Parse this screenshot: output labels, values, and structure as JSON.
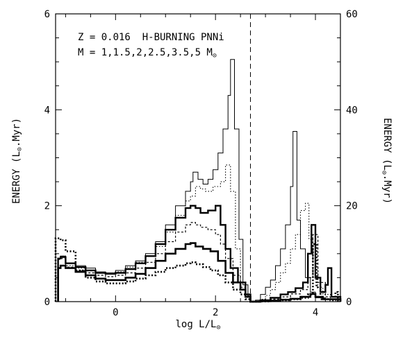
{
  "chart_data": {
    "type": "line",
    "step": true,
    "annotations": {
      "line1": "Z = 0.016  H-BURNING PNNi",
      "line2": "M = 1,1.5,2,2.5,3.5,5 M",
      "line2_sub": "⊙"
    },
    "xlabel": "log L/L",
    "xlabel_sub": "⊙",
    "ylabel_left": "ENERGY (L",
    "ylabel_left_sub": "⊙",
    "ylabel_left_end": ".Myr)",
    "ylabel_right": "ENERGY (L",
    "ylabel_right_sub": "⊙",
    "ylabel_right_end": ".Myr)",
    "xlim": [
      -1.2,
      4.5
    ],
    "ylim_left": [
      0,
      6
    ],
    "ylim_right": [
      0,
      60
    ],
    "x_ticks": [
      0,
      2,
      4
    ],
    "y_ticks_left": [
      0,
      2,
      4,
      6
    ],
    "y_ticks_right": [
      0,
      20,
      40,
      60
    ],
    "vertical_dashed_line_x": 2.7,
    "left_axis_range_x": [
      -1.2,
      2.7
    ],
    "right_axis_range_x": [
      2.7,
      4.5
    ],
    "series": [
      {
        "style": "thin-solid",
        "points": [
          [
            -1.15,
            0
          ],
          [
            -1.15,
            0.9
          ],
          [
            -1.1,
            0.95
          ],
          [
            -1.0,
            0.8
          ],
          [
            -0.8,
            0.75
          ],
          [
            -0.6,
            0.7
          ],
          [
            -0.4,
            0.62
          ],
          [
            -0.2,
            0.6
          ],
          [
            0.0,
            0.65
          ],
          [
            0.2,
            0.75
          ],
          [
            0.4,
            0.85
          ],
          [
            0.6,
            1.0
          ],
          [
            0.8,
            1.25
          ],
          [
            1.0,
            1.6
          ],
          [
            1.2,
            2.0
          ],
          [
            1.4,
            2.3
          ],
          [
            1.5,
            2.5
          ],
          [
            1.55,
            2.7
          ],
          [
            1.65,
            2.55
          ],
          [
            1.75,
            2.45
          ],
          [
            1.85,
            2.55
          ],
          [
            1.95,
            2.75
          ],
          [
            2.05,
            3.1
          ],
          [
            2.15,
            3.6
          ],
          [
            2.25,
            4.3
          ],
          [
            2.3,
            5.05
          ],
          [
            2.38,
            3.6
          ],
          [
            2.47,
            1.3
          ],
          [
            2.55,
            0.35
          ],
          [
            2.65,
            0.1
          ],
          [
            2.7,
            0
          ],
          [
            2.8,
            0.3
          ],
          [
            2.9,
            1.5
          ],
          [
            3.0,
            3.0
          ],
          [
            3.1,
            4.5
          ],
          [
            3.2,
            7.5
          ],
          [
            3.3,
            11.0
          ],
          [
            3.4,
            16.0
          ],
          [
            3.5,
            24.0
          ],
          [
            3.55,
            35.5
          ],
          [
            3.63,
            17.0
          ],
          [
            3.7,
            11.0
          ],
          [
            3.8,
            5.0
          ],
          [
            3.9,
            2.0
          ],
          [
            4.0,
            0.8
          ],
          [
            4.2,
            0
          ],
          [
            4.5,
            0
          ]
        ]
      },
      {
        "style": "thin-dotted",
        "points": [
          [
            -1.15,
            0
          ],
          [
            -1.15,
            0.9
          ],
          [
            -1.1,
            0.95
          ],
          [
            -1.0,
            0.75
          ],
          [
            -0.8,
            0.7
          ],
          [
            -0.6,
            0.65
          ],
          [
            -0.4,
            0.6
          ],
          [
            -0.2,
            0.58
          ],
          [
            0.0,
            0.62
          ],
          [
            0.2,
            0.72
          ],
          [
            0.4,
            0.82
          ],
          [
            0.6,
            0.95
          ],
          [
            0.8,
            1.15
          ],
          [
            1.0,
            1.45
          ],
          [
            1.2,
            1.8
          ],
          [
            1.4,
            2.1
          ],
          [
            1.5,
            2.2
          ],
          [
            1.6,
            2.4
          ],
          [
            1.7,
            2.35
          ],
          [
            1.8,
            2.3
          ],
          [
            1.95,
            2.4
          ],
          [
            2.1,
            2.5
          ],
          [
            2.2,
            2.85
          ],
          [
            2.3,
            2.3
          ],
          [
            2.4,
            1.1
          ],
          [
            2.5,
            0.4
          ],
          [
            2.6,
            0.15
          ],
          [
            2.7,
            0
          ],
          [
            2.9,
            0.5
          ],
          [
            3.0,
            1.3
          ],
          [
            3.1,
            2.5
          ],
          [
            3.2,
            4.0
          ],
          [
            3.3,
            6.0
          ],
          [
            3.4,
            8.0
          ],
          [
            3.5,
            11.0
          ],
          [
            3.6,
            14.0
          ],
          [
            3.7,
            19.0
          ],
          [
            3.8,
            20.5
          ],
          [
            3.87,
            13.0
          ],
          [
            3.95,
            7.0
          ],
          [
            4.05,
            3.0
          ],
          [
            4.15,
            1.5
          ],
          [
            4.3,
            0.5
          ],
          [
            4.5,
            0
          ]
        ]
      },
      {
        "style": "thick-solid",
        "points": [
          [
            -1.15,
            0
          ],
          [
            -1.15,
            0.9
          ],
          [
            -1.1,
            0.93
          ],
          [
            -1.0,
            0.8
          ],
          [
            -0.8,
            0.72
          ],
          [
            -0.6,
            0.65
          ],
          [
            -0.4,
            0.6
          ],
          [
            -0.2,
            0.58
          ],
          [
            0.0,
            0.6
          ],
          [
            0.2,
            0.68
          ],
          [
            0.4,
            0.8
          ],
          [
            0.6,
            0.95
          ],
          [
            0.8,
            1.2
          ],
          [
            1.0,
            1.5
          ],
          [
            1.2,
            1.75
          ],
          [
            1.4,
            1.95
          ],
          [
            1.5,
            2.0
          ],
          [
            1.6,
            1.95
          ],
          [
            1.7,
            1.85
          ],
          [
            1.85,
            1.9
          ],
          [
            2.0,
            2.0
          ],
          [
            2.1,
            1.6
          ],
          [
            2.2,
            1.1
          ],
          [
            2.3,
            0.7
          ],
          [
            2.45,
            0.4
          ],
          [
            2.6,
            0.15
          ],
          [
            2.7,
            0
          ],
          [
            2.9,
            0.3
          ],
          [
            3.1,
            0.8
          ],
          [
            3.3,
            1.5
          ],
          [
            3.45,
            2.0
          ],
          [
            3.6,
            2.8
          ],
          [
            3.75,
            4.0
          ],
          [
            3.85,
            10.0
          ],
          [
            3.92,
            16.0
          ],
          [
            4.0,
            5.0
          ],
          [
            4.1,
            2.0
          ],
          [
            4.2,
            3.5
          ],
          [
            4.25,
            7.0
          ],
          [
            4.32,
            1.0
          ],
          [
            4.5,
            0
          ]
        ]
      },
      {
        "style": "thin-dashed",
        "points": [
          [
            -1.15,
            0
          ],
          [
            -1.15,
            0.88
          ],
          [
            -1.1,
            0.9
          ],
          [
            -1.0,
            0.72
          ],
          [
            -0.8,
            0.65
          ],
          [
            -0.6,
            0.6
          ],
          [
            -0.4,
            0.55
          ],
          [
            -0.2,
            0.52
          ],
          [
            0.0,
            0.55
          ],
          [
            0.2,
            0.6
          ],
          [
            0.4,
            0.7
          ],
          [
            0.6,
            0.82
          ],
          [
            0.8,
            1.0
          ],
          [
            1.0,
            1.25
          ],
          [
            1.2,
            1.45
          ],
          [
            1.4,
            1.6
          ],
          [
            1.5,
            1.65
          ],
          [
            1.6,
            1.6
          ],
          [
            1.7,
            1.55
          ],
          [
            1.85,
            1.5
          ],
          [
            2.0,
            1.4
          ],
          [
            2.1,
            1.2
          ],
          [
            2.2,
            0.9
          ],
          [
            2.35,
            0.55
          ],
          [
            2.5,
            0.3
          ],
          [
            2.6,
            0.12
          ],
          [
            2.7,
            0
          ],
          [
            2.9,
            0.2
          ],
          [
            3.1,
            0.5
          ],
          [
            3.3,
            1.0
          ],
          [
            3.5,
            1.6
          ],
          [
            3.7,
            2.5
          ],
          [
            3.85,
            5.0
          ],
          [
            3.95,
            14.0
          ],
          [
            4.05,
            4.0
          ],
          [
            4.2,
            1.0
          ],
          [
            4.5,
            0
          ]
        ]
      },
      {
        "style": "thick-solid-2",
        "points": [
          [
            -1.15,
            0
          ],
          [
            -1.15,
            0.7
          ],
          [
            -1.1,
            0.75
          ],
          [
            -1.0,
            0.7
          ],
          [
            -0.8,
            0.62
          ],
          [
            -0.6,
            0.55
          ],
          [
            -0.4,
            0.48
          ],
          [
            -0.2,
            0.45
          ],
          [
            0.0,
            0.45
          ],
          [
            0.2,
            0.5
          ],
          [
            0.4,
            0.58
          ],
          [
            0.6,
            0.7
          ],
          [
            0.8,
            0.85
          ],
          [
            1.0,
            1.0
          ],
          [
            1.2,
            1.1
          ],
          [
            1.4,
            1.2
          ],
          [
            1.5,
            1.22
          ],
          [
            1.6,
            1.15
          ],
          [
            1.75,
            1.1
          ],
          [
            1.9,
            1.05
          ],
          [
            2.05,
            0.85
          ],
          [
            2.2,
            0.6
          ],
          [
            2.35,
            0.4
          ],
          [
            2.5,
            0.25
          ],
          [
            2.6,
            0.1
          ],
          [
            2.7,
            0
          ],
          [
            2.9,
            0.1
          ],
          [
            3.1,
            0.2
          ],
          [
            3.3,
            0.4
          ],
          [
            3.5,
            0.6
          ],
          [
            3.7,
            1.0
          ],
          [
            3.9,
            1.6
          ],
          [
            4.0,
            1.0
          ],
          [
            4.15,
            0.5
          ],
          [
            4.5,
            0
          ]
        ]
      },
      {
        "style": "thick-dotted",
        "points": [
          [
            -1.2,
            0
          ],
          [
            -1.2,
            1.32
          ],
          [
            -1.1,
            1.28
          ],
          [
            -1.0,
            1.05
          ],
          [
            -0.8,
            0.65
          ],
          [
            -0.6,
            0.5
          ],
          [
            -0.4,
            0.42
          ],
          [
            -0.2,
            0.38
          ],
          [
            0.0,
            0.38
          ],
          [
            0.2,
            0.42
          ],
          [
            0.4,
            0.48
          ],
          [
            0.6,
            0.55
          ],
          [
            0.8,
            0.62
          ],
          [
            1.0,
            0.7
          ],
          [
            1.2,
            0.75
          ],
          [
            1.4,
            0.8
          ],
          [
            1.5,
            0.82
          ],
          [
            1.6,
            0.78
          ],
          [
            1.75,
            0.72
          ],
          [
            1.9,
            0.65
          ],
          [
            2.05,
            0.55
          ],
          [
            2.2,
            0.4
          ],
          [
            2.35,
            0.25
          ],
          [
            2.5,
            0.15
          ],
          [
            2.6,
            0.05
          ],
          [
            2.7,
            0
          ],
          [
            2.9,
            0.05
          ],
          [
            3.1,
            0.15
          ],
          [
            3.3,
            0.3
          ],
          [
            3.5,
            0.5
          ],
          [
            3.7,
            0.8
          ],
          [
            3.85,
            1.5
          ],
          [
            3.95,
            12.0
          ],
          [
            4.02,
            3.0
          ],
          [
            4.1,
            0.5
          ],
          [
            4.3,
            0.3
          ],
          [
            4.4,
            2.0
          ],
          [
            4.45,
            0.2
          ],
          [
            4.5,
            0
          ]
        ]
      }
    ]
  }
}
